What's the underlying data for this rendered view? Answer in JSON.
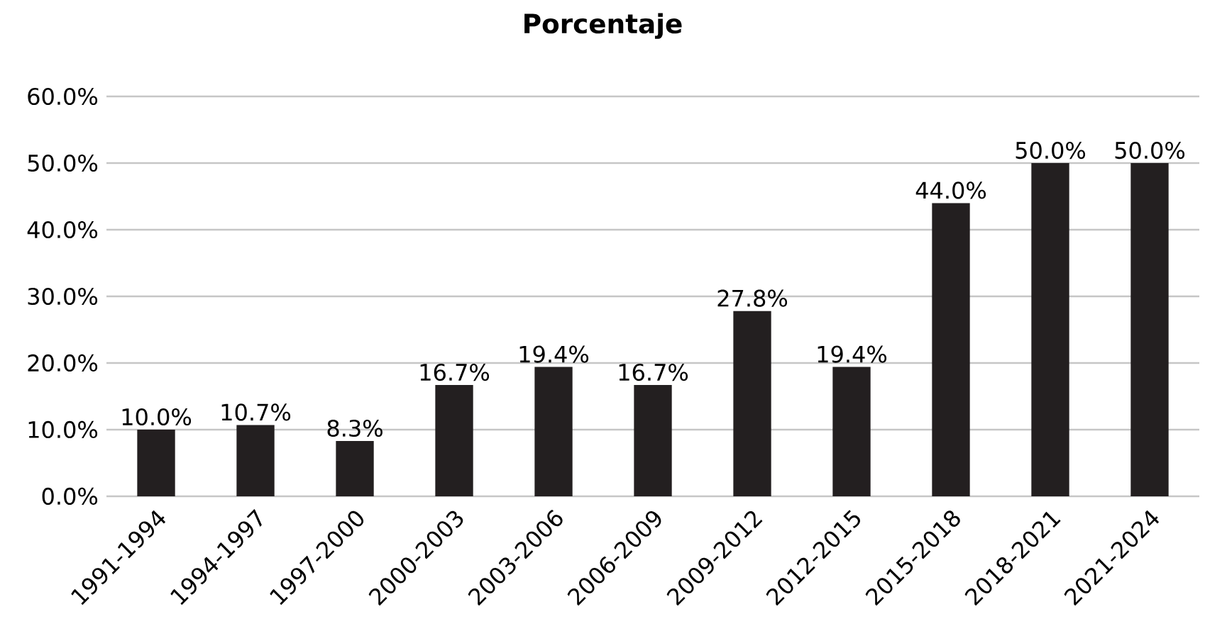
{
  "chart_data": {
    "type": "bar",
    "title": "Porcentaje",
    "categories": [
      "1991-1994",
      "1994-1997",
      "1997-2000",
      "2000-2003",
      "2003-2006",
      "2006-2009",
      "2009-2012",
      "2012-2015",
      "2015-2018",
      "2018-2021",
      "2021-2024"
    ],
    "values": [
      10.0,
      10.7,
      8.3,
      16.7,
      19.4,
      16.7,
      27.8,
      19.4,
      44.0,
      50.0,
      50.0
    ],
    "value_labels": [
      "10.0%",
      "10.7%",
      "8.3%",
      "16.7%",
      "19.4%",
      "16.7%",
      "27.8%",
      "19.4%",
      "44.0%",
      "50.0%",
      "50.0%"
    ],
    "color": "#231f20",
    "ylim": [
      0,
      60
    ],
    "yticks": [
      {
        "value": 0,
        "label": "0.0%"
      },
      {
        "value": 10,
        "label": "10.0%"
      },
      {
        "value": 20,
        "label": "20.0%"
      },
      {
        "value": 30,
        "label": "30.0%"
      },
      {
        "value": 40,
        "label": "40.0%"
      },
      {
        "value": 50,
        "label": "50.0%"
      },
      {
        "value": 60,
        "label": "60.0%"
      }
    ],
    "grid": "y"
  }
}
